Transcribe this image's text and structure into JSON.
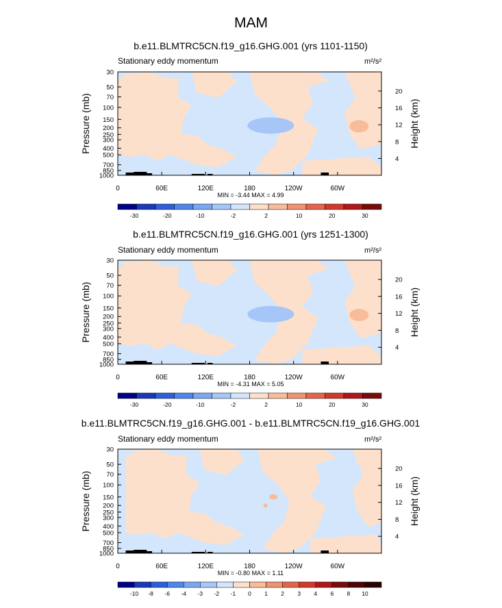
{
  "figure": {
    "title": "MAM"
  },
  "chart_data": [
    {
      "type": "heatmap",
      "title": "b.e11.BLMTRC5CN.f19_g16.GHG.001 (yrs 1101-1150)",
      "subtitle": "Stationary eddy momentum",
      "units": "m²/s²",
      "ylabel": "Pressure (mb)",
      "y2label": "Height (km)",
      "ylim": [
        1000,
        30
      ],
      "yscale": "log",
      "y_ticks": [
        "30",
        "50",
        "70",
        "100",
        "150",
        "200",
        "250",
        "300",
        "400",
        "500",
        "700",
        "850",
        "1000"
      ],
      "y2_ticks": [
        "20",
        "16",
        "12",
        "8",
        "4"
      ],
      "x_ticks": [
        "0",
        "60E",
        "120E",
        "180",
        "120W",
        "60W"
      ],
      "min_max": "MIN =  -3.44  MAX =   4.99",
      "colorbar": {
        "labels": [
          "-30",
          "-20",
          "-10",
          "-2",
          "2",
          "10",
          "20",
          "30"
        ],
        "colors": [
          "#00008b",
          "#1a39b8",
          "#2c5fd9",
          "#4f86ea",
          "#7aa8f3",
          "#a6c6f8",
          "#d3e6fb",
          "#fde0cb",
          "#f9bc9b",
          "#f09270",
          "#e4654b",
          "#d13a2a",
          "#b0171a",
          "#7a0b0b"
        ]
      },
      "blue_region_value": "-2 to 2",
      "notable_features": [
        {
          "label": "negative",
          "lon": "180-150W",
          "pressure_mb": "150-250",
          "value_range": "-10 to -2"
        },
        {
          "label": "positive",
          "lon": "50W-40W",
          "pressure_mb": "150-250",
          "value_range": "2 to 10"
        }
      ]
    },
    {
      "type": "heatmap",
      "title": "b.e11.BLMTRC5CN.f19_g16.GHG.001 (yrs 1251-1300)",
      "subtitle": "Stationary eddy momentum",
      "units": "m²/s²",
      "ylabel": "Pressure (mb)",
      "y2label": "Height (km)",
      "ylim": [
        1000,
        30
      ],
      "yscale": "log",
      "y_ticks": [
        "30",
        "50",
        "70",
        "100",
        "150",
        "200",
        "250",
        "300",
        "400",
        "500",
        "700",
        "850",
        "1000"
      ],
      "y2_ticks": [
        "20",
        "16",
        "12",
        "8",
        "4"
      ],
      "x_ticks": [
        "0",
        "60E",
        "120E",
        "180",
        "120W",
        "60W"
      ],
      "min_max": "MIN =  -4.31  MAX =   5.05",
      "colorbar": {
        "labels": [
          "-30",
          "-20",
          "-10",
          "-2",
          "2",
          "10",
          "20",
          "30"
        ],
        "colors": [
          "#00008b",
          "#1a39b8",
          "#2c5fd9",
          "#4f86ea",
          "#7aa8f3",
          "#a6c6f8",
          "#d3e6fb",
          "#fde0cb",
          "#f9bc9b",
          "#f09270",
          "#e4654b",
          "#d13a2a",
          "#b0171a",
          "#7a0b0b"
        ]
      }
    },
    {
      "type": "heatmap",
      "title": "b.e11.BLMTRC5CN.f19_g16.GHG.001 - b.e11.BLMTRC5CN.f19_g16.GHG.001",
      "subtitle": "Stationary eddy momentum",
      "units": "m²/s²",
      "ylabel": "Pressure (mb)",
      "y2label": "Height (km)",
      "ylim": [
        1000,
        30
      ],
      "yscale": "log",
      "y_ticks": [
        "30",
        "50",
        "70",
        "100",
        "150",
        "200",
        "250",
        "300",
        "400",
        "500",
        "700",
        "850",
        "1000"
      ],
      "y2_ticks": [
        "20",
        "16",
        "12",
        "8",
        "4"
      ],
      "x_ticks": [
        "0",
        "60E",
        "120E",
        "180",
        "120W",
        "60W"
      ],
      "min_max": "MIN =  -0.80  MAX =   1.11",
      "colorbar": {
        "labels": [
          "-10",
          "-8",
          "-6",
          "-4",
          "-3",
          "-2",
          "-1",
          "0",
          "1",
          "2",
          "3",
          "4",
          "6",
          "8",
          "10"
        ],
        "colors": [
          "#00008b",
          "#1a39b8",
          "#2c5fd9",
          "#4f86ea",
          "#7aa8f3",
          "#a6c6f8",
          "#d3e6fb",
          "#fde0cb",
          "#f9bc9b",
          "#f09270",
          "#e4654b",
          "#d13a2a",
          "#b0171a",
          "#7a0b0b",
          "#4d0505",
          "#2b0202"
        ]
      }
    }
  ]
}
